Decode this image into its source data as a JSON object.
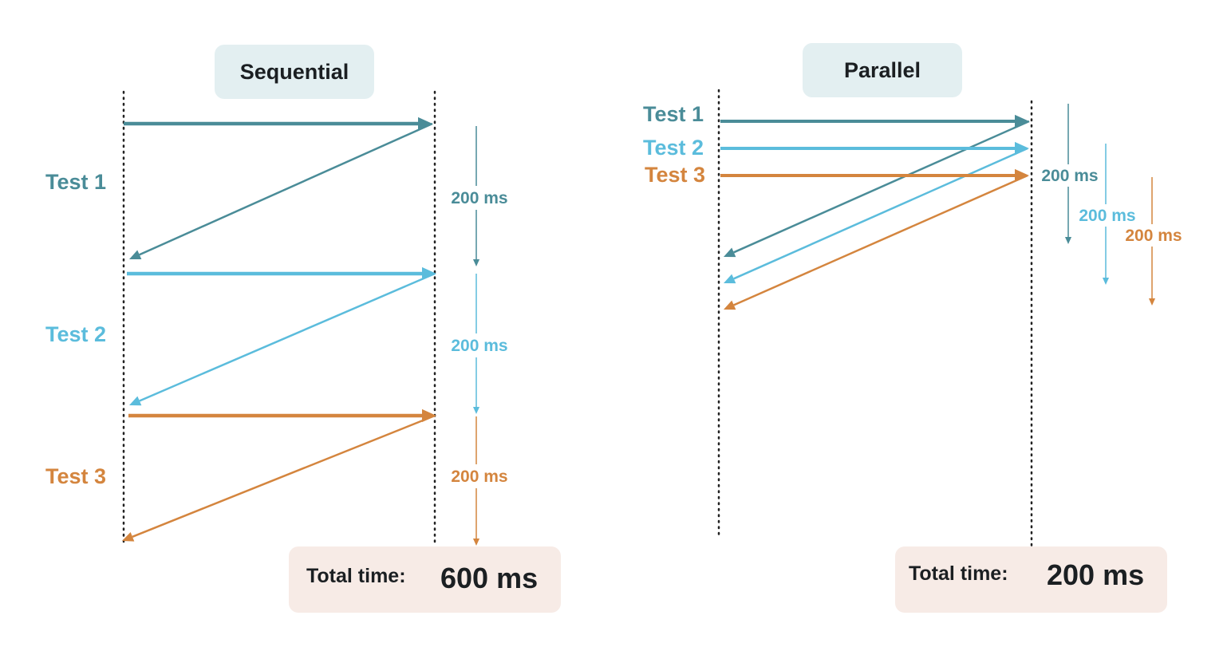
{
  "colors": {
    "test1": "#4a8c98",
    "test2": "#5bbcdc",
    "test3": "#d4853e",
    "header_bg": "#e3eff1",
    "total_bg": "#f7ebe6",
    "text": "#1b1f22"
  },
  "sequential": {
    "title": "Sequential",
    "tests": [
      {
        "label": "Test 1",
        "duration": "200 ms"
      },
      {
        "label": "Test 2",
        "duration": "200 ms"
      },
      {
        "label": "Test 3",
        "duration": "200 ms"
      }
    ],
    "total_label": "Total time:",
    "total_value": "600 ms"
  },
  "parallel": {
    "title": "Parallel",
    "tests": [
      {
        "label": "Test 1",
        "duration": "200 ms"
      },
      {
        "label": "Test 2",
        "duration": "200 ms"
      },
      {
        "label": "Test 3",
        "duration": "200 ms"
      }
    ],
    "total_label": "Total time:",
    "total_value": "200 ms"
  }
}
